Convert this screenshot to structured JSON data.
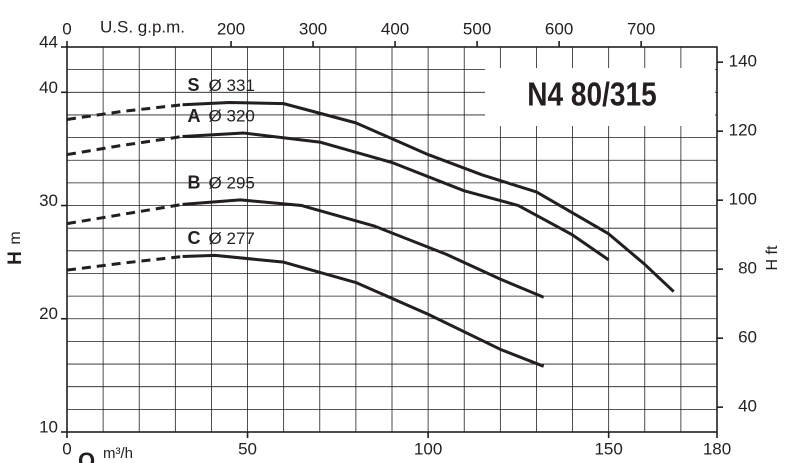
{
  "chart_data": {
    "type": "line",
    "title": "N4 80/315",
    "x_label": "Q",
    "x_unit": "m³/h",
    "x2_label": "U.S. g.p.m.",
    "y_label": "H",
    "y_unit": "m",
    "y2_label": "H ft",
    "xlim": [
      0,
      180
    ],
    "xticks": [
      0,
      50,
      100,
      150,
      180
    ],
    "x2lim": [
      0,
      792.5
    ],
    "x2ticks": [
      0,
      200,
      300,
      400,
      500,
      600,
      700
    ],
    "ylim": [
      10,
      44
    ],
    "yticks": [
      10,
      20,
      30,
      40,
      44
    ],
    "y2lim": [
      32.8,
      144.4
    ],
    "y2ticks": [
      40,
      60,
      80,
      100,
      120,
      140
    ],
    "grid": true,
    "grid_x_step": 10,
    "grid_y_step": 2,
    "color": "#231f20",
    "series": [
      {
        "name": "S",
        "diameter": "Ø 331",
        "segments": [
          {
            "style": "dashed",
            "x": [
              0,
              15,
              32
            ],
            "values": [
              37.6,
              38.3,
              38.9
            ]
          },
          {
            "style": "solid",
            "x": [
              32,
              45,
              60,
              80,
              100,
              115,
              130,
              150,
              160,
              168
            ],
            "values": [
              38.9,
              39.1,
              39.0,
              37.3,
              34.5,
              32.7,
              31.2,
              27.5,
              24.8,
              22.4
            ]
          }
        ]
      },
      {
        "name": "A",
        "diameter": "Ø 320",
        "segments": [
          {
            "style": "dashed",
            "x": [
              0,
              15,
              32
            ],
            "values": [
              34.5,
              35.3,
              36.1
            ]
          },
          {
            "style": "solid",
            "x": [
              32,
              49,
              70,
              90,
              110,
              125,
              140,
              150
            ],
            "values": [
              36.1,
              36.4,
              35.6,
              33.8,
              31.3,
              30.0,
              27.4,
              25.2
            ]
          }
        ]
      },
      {
        "name": "B",
        "diameter": "Ø 295",
        "segments": [
          {
            "style": "dashed",
            "x": [
              0,
              15,
              32
            ],
            "values": [
              28.4,
              29.2,
              30.1
            ]
          },
          {
            "style": "solid",
            "x": [
              32,
              48,
              65,
              85,
              105,
              120,
              132
            ],
            "values": [
              30.1,
              30.5,
              30.0,
              28.2,
              25.7,
              23.5,
              21.9
            ]
          }
        ]
      },
      {
        "name": "C",
        "diameter": "Ø 277",
        "segments": [
          {
            "style": "dashed",
            "x": [
              0,
              15,
              32
            ],
            "values": [
              24.3,
              24.9,
              25.5
            ]
          },
          {
            "style": "solid",
            "x": [
              32,
              41,
              60,
              80,
              100,
              120,
              132
            ],
            "values": [
              25.5,
              25.6,
              25.0,
              23.2,
              20.4,
              17.3,
              15.8
            ]
          }
        ]
      }
    ]
  }
}
